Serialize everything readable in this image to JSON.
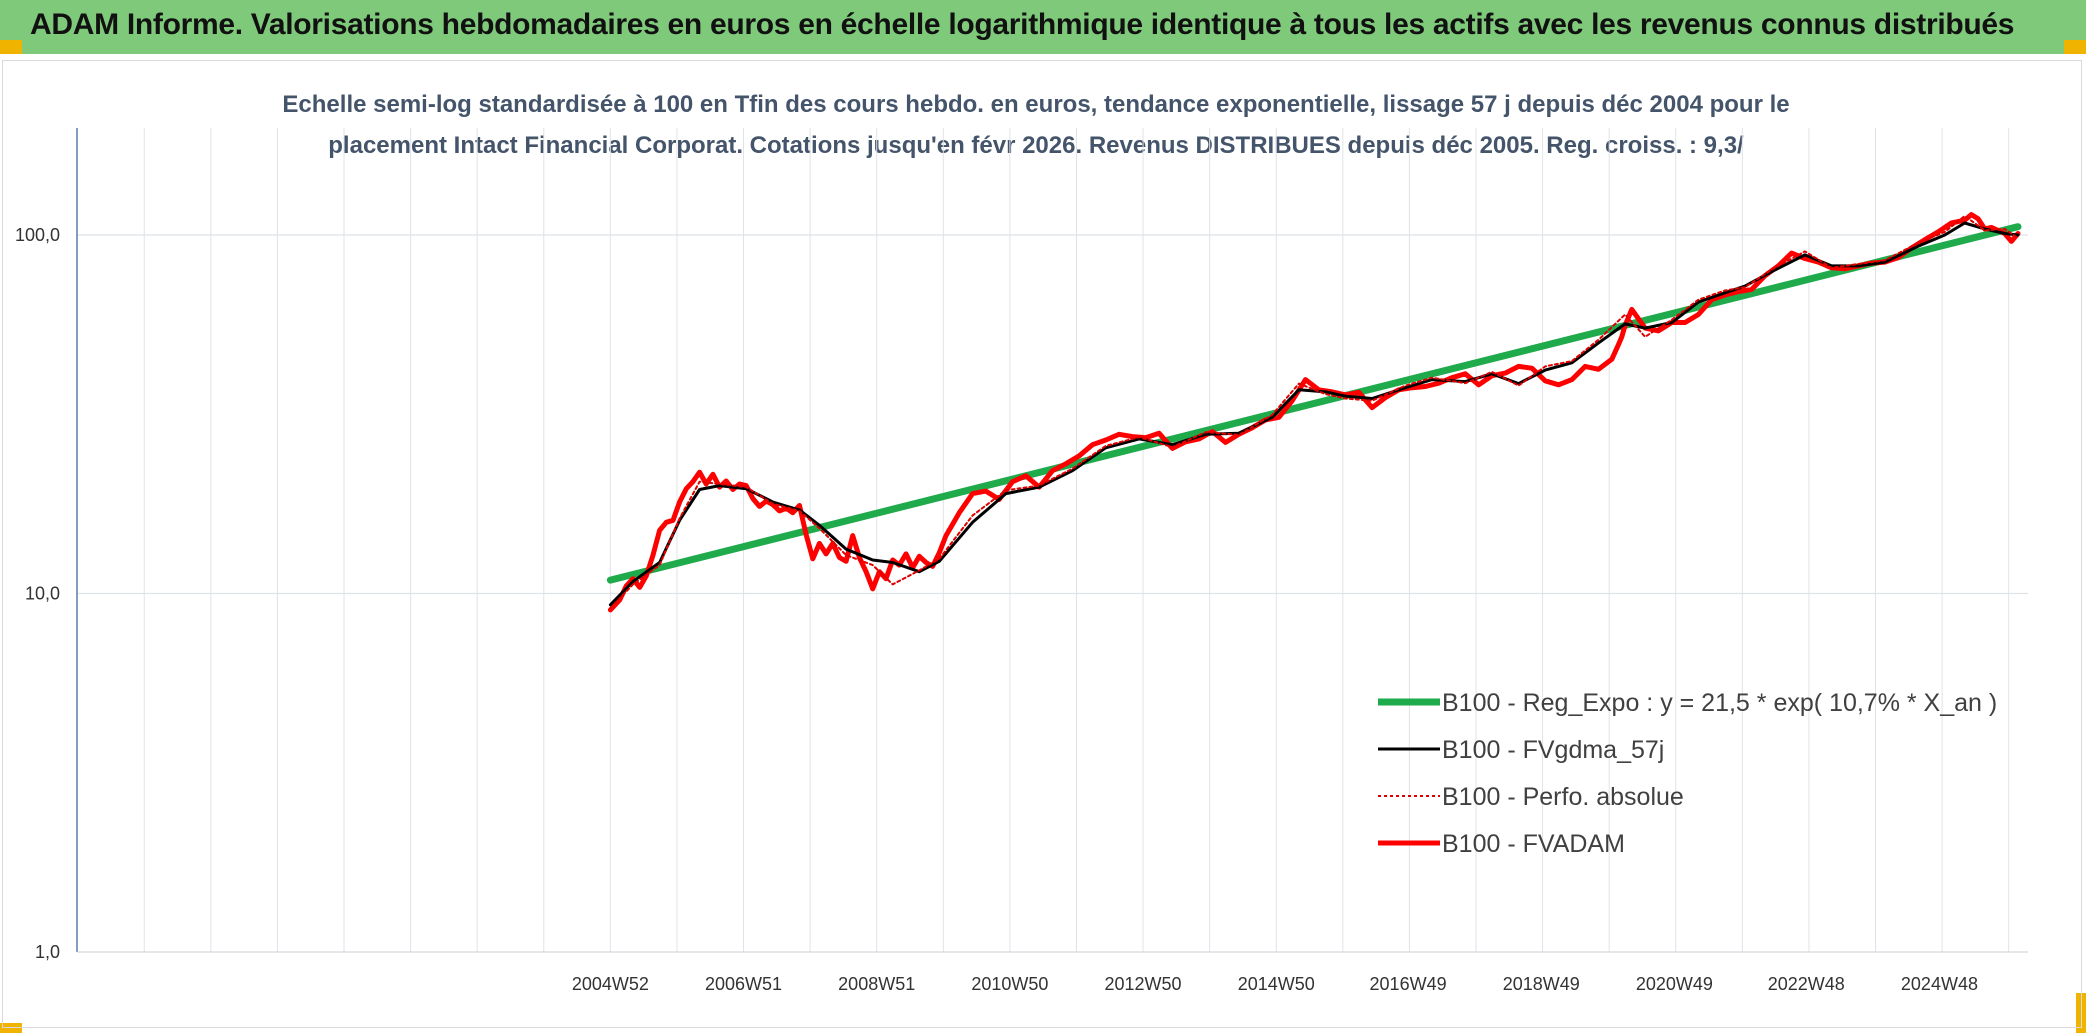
{
  "banner": {
    "title": "ADAM Informe. Valorisations hebdomadaires en euros en échelle logarithmique identique à tous les actifs avec les revenus connus distribués"
  },
  "colors": {
    "banner_bg": "#7fc97a",
    "regression": "#1faa4b",
    "smooth": "#000000",
    "perf": "#e00000",
    "adam": "#ff0000",
    "grid": "#dfe3e8",
    "axis": "#5b7bb0"
  },
  "chart_data": {
    "type": "line",
    "title_lines": [
      "Echelle semi-log standardisée à 100 en Tfin des cours hebdo. en euros, tendance exponentielle, lissage 57 j depuis déc 2004 pour le",
      "placement Intact Financial Corporat. Cotations jusqu'en févr 2026. Revenus DISTRIBUES depuis déc 2005. Reg. croiss. : 9,3/"
    ],
    "y_scale": "log",
    "ylim": [
      1,
      180
    ],
    "y_ticks": [
      1,
      10,
      100
    ],
    "y_tick_labels": [
      "1,0",
      "10,0",
      "100,0"
    ],
    "x_range": [
      1996.95,
      2026.25
    ],
    "x_ticks": [
      2004.96,
      2006.96,
      2008.96,
      2010.96,
      2012.96,
      2014.96,
      2016.94,
      2018.94,
      2020.94,
      2022.92,
      2024.92
    ],
    "x_tick_labels": [
      "2004W52",
      "2006W51",
      "2008W51",
      "2010W50",
      "2012W50",
      "2014W50",
      "2016W49",
      "2018W49",
      "2020W49",
      "2022W48",
      "2024W48"
    ],
    "legend_position": "bottom-right",
    "grid": true,
    "series": [
      {
        "name": "B100 - Reg_Expo : y = 21,5 * exp( 10,7% *  X_an )",
        "style": "thick-green",
        "x": [
          2004.96,
          2026.1
        ],
        "y": [
          10.9,
          105.5
        ]
      },
      {
        "name": "B100 - FVgdma_57j",
        "style": "thin-black",
        "x": [
          2004.96,
          2005.3,
          2005.7,
          2006.0,
          2006.3,
          2006.6,
          2007.0,
          2007.4,
          2007.8,
          2008.1,
          2008.5,
          2008.9,
          2009.2,
          2009.6,
          2009.9,
          2010.4,
          2010.9,
          2011.4,
          2011.9,
          2012.4,
          2012.9,
          2013.4,
          2013.9,
          2014.4,
          2014.9,
          2015.3,
          2015.7,
          2016.0,
          2016.4,
          2016.9,
          2017.3,
          2017.8,
          2018.2,
          2018.6,
          2019.0,
          2019.4,
          2019.8,
          2020.2,
          2020.5,
          2020.9,
          2021.3,
          2021.7,
          2022.0,
          2022.4,
          2022.9,
          2023.3,
          2023.7,
          2024.1,
          2024.6,
          2025.0,
          2025.3,
          2025.6,
          2025.9,
          2026.1
        ],
        "y": [
          9.3,
          10.8,
          12.2,
          16.0,
          19.5,
          20.0,
          19.6,
          18.0,
          17.1,
          15.5,
          13.3,
          12.4,
          12.2,
          11.5,
          12.3,
          15.8,
          19.0,
          19.8,
          22.0,
          25.5,
          27.0,
          26.0,
          27.8,
          28.0,
          31.0,
          37.0,
          36.5,
          35.5,
          35.0,
          37.5,
          39.5,
          39.0,
          41.0,
          38.5,
          42.0,
          44.0,
          50.0,
          56.5,
          55.0,
          57.0,
          65.0,
          69.0,
          72.0,
          79.0,
          88.0,
          82.0,
          82.0,
          84.0,
          93.0,
          100.0,
          108.0,
          104.0,
          101.0,
          100.0
        ]
      },
      {
        "name": "B100 - Perfo. absolue",
        "style": "dotted-red",
        "x": [
          2004.96,
          2005.3,
          2005.7,
          2006.0,
          2006.3,
          2006.6,
          2007.0,
          2007.4,
          2007.8,
          2008.1,
          2008.5,
          2008.9,
          2009.2,
          2009.6,
          2009.9,
          2010.4,
          2010.9,
          2011.4,
          2011.9,
          2012.4,
          2012.9,
          2013.4,
          2013.9,
          2014.4,
          2014.9,
          2015.3,
          2015.7,
          2016.0,
          2016.4,
          2016.9,
          2017.3,
          2017.8,
          2018.2,
          2018.6,
          2019.0,
          2019.4,
          2019.8,
          2020.2,
          2020.5,
          2020.9,
          2021.3,
          2021.7,
          2022.0,
          2022.4,
          2022.9,
          2023.3,
          2023.7,
          2024.1,
          2024.6,
          2025.0,
          2025.3,
          2025.6,
          2025.9,
          2026.1
        ],
        "y": [
          9.1,
          10.6,
          12.0,
          16.2,
          20.5,
          20.2,
          19.8,
          17.8,
          17.0,
          15.2,
          12.8,
          12.0,
          10.6,
          11.6,
          12.5,
          16.5,
          19.4,
          20.0,
          22.3,
          25.8,
          27.3,
          25.6,
          28.2,
          27.7,
          31.5,
          38.5,
          36.0,
          35.0,
          34.5,
          38.0,
          40.0,
          38.6,
          41.5,
          38.0,
          43.0,
          44.5,
          51.0,
          60.0,
          52.0,
          58.0,
          66.0,
          70.0,
          71.5,
          80.0,
          90.0,
          81.0,
          83.0,
          85.0,
          95.0,
          102.0,
          113.0,
          103.0,
          104.0,
          98.0
        ]
      },
      {
        "name": "B100 - FVADAM",
        "style": "thick-red",
        "x": [
          2004.96,
          2005.1,
          2005.2,
          2005.3,
          2005.4,
          2005.5,
          2005.6,
          2005.7,
          2005.8,
          2005.9,
          2006.0,
          2006.1,
          2006.2,
          2006.3,
          2006.4,
          2006.5,
          2006.6,
          2006.7,
          2006.8,
          2006.9,
          2007.0,
          2007.1,
          2007.2,
          2007.3,
          2007.4,
          2007.5,
          2007.6,
          2007.7,
          2007.8,
          2007.9,
          2008.0,
          2008.1,
          2008.2,
          2008.3,
          2008.4,
          2008.5,
          2008.6,
          2008.7,
          2008.8,
          2008.9,
          2009.0,
          2009.1,
          2009.2,
          2009.3,
          2009.4,
          2009.5,
          2009.6,
          2009.7,
          2009.8,
          2009.9,
          2010.0,
          2010.2,
          2010.4,
          2010.6,
          2010.8,
          2011.0,
          2011.2,
          2011.4,
          2011.6,
          2011.8,
          2012.0,
          2012.2,
          2012.4,
          2012.6,
          2012.8,
          2013.0,
          2013.2,
          2013.4,
          2013.6,
          2013.8,
          2014.0,
          2014.2,
          2014.4,
          2014.6,
          2014.8,
          2015.0,
          2015.2,
          2015.4,
          2015.6,
          2015.8,
          2016.0,
          2016.2,
          2016.4,
          2016.6,
          2016.8,
          2017.0,
          2017.2,
          2017.4,
          2017.6,
          2017.8,
          2018.0,
          2018.2,
          2018.4,
          2018.6,
          2018.8,
          2019.0,
          2019.2,
          2019.4,
          2019.6,
          2019.8,
          2020.0,
          2020.1,
          2020.15,
          2020.2,
          2020.3,
          2020.5,
          2020.7,
          2020.9,
          2021.1,
          2021.3,
          2021.5,
          2021.7,
          2021.9,
          2022.1,
          2022.3,
          2022.5,
          2022.7,
          2022.9,
          2023.1,
          2023.3,
          2023.5,
          2023.7,
          2023.9,
          2024.1,
          2024.3,
          2024.5,
          2024.7,
          2024.9,
          2025.1,
          2025.3,
          2025.4,
          2025.5,
          2025.6,
          2025.7,
          2025.8,
          2025.9,
          2026.0,
          2026.1
        ],
        "y": [
          9.0,
          9.6,
          10.5,
          11.0,
          10.4,
          11.2,
          12.8,
          15.0,
          15.8,
          16.0,
          18.0,
          19.6,
          20.5,
          21.8,
          20.2,
          21.5,
          19.8,
          20.6,
          19.5,
          20.2,
          20.0,
          18.4,
          17.5,
          18.1,
          17.7,
          17.0,
          17.3,
          16.8,
          17.6,
          14.6,
          12.5,
          13.8,
          12.9,
          13.8,
          12.6,
          12.3,
          14.5,
          12.6,
          11.5,
          10.3,
          11.5,
          11.0,
          12.4,
          12.0,
          12.9,
          11.8,
          12.7,
          12.2,
          11.9,
          13.0,
          14.5,
          16.8,
          19.0,
          19.3,
          18.3,
          20.5,
          21.3,
          19.8,
          22.0,
          23.0,
          24.2,
          26.0,
          26.8,
          27.8,
          27.4,
          27.2,
          28.0,
          25.4,
          26.5,
          27.0,
          28.3,
          26.4,
          27.8,
          29.0,
          30.5,
          31.0,
          34.5,
          39.5,
          37.0,
          36.5,
          35.8,
          36.4,
          33.0,
          35.2,
          37.0,
          37.5,
          37.8,
          38.6,
          40.0,
          41.0,
          38.2,
          40.5,
          41.2,
          43.0,
          42.5,
          39.2,
          38.2,
          39.5,
          43.0,
          42.2,
          45.0,
          49.5,
          52.0,
          56.0,
          62.0,
          55.0,
          54.0,
          57.0,
          57.0,
          60.0,
          66.0,
          68.0,
          69.5,
          70.5,
          77.0,
          82.0,
          89.0,
          86.0,
          84.0,
          81.0,
          80.5,
          82.0,
          83.5,
          84.0,
          86.5,
          92.0,
          97.0,
          102.0,
          108.0,
          110.0,
          114.0,
          111.0,
          104.0,
          105.0,
          103.0,
          101.0,
          96.0,
          101.0
        ]
      }
    ]
  }
}
